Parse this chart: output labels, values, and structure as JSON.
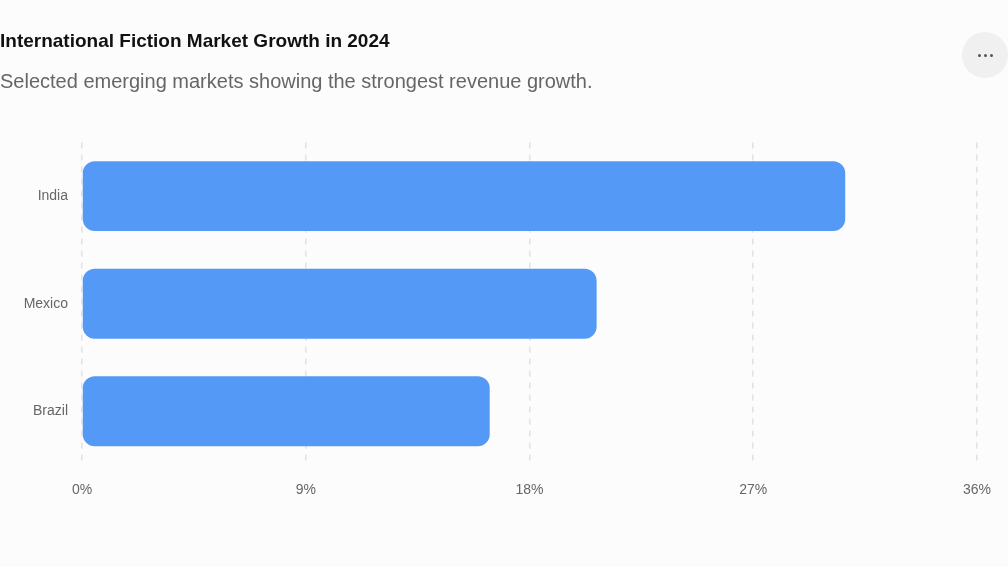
{
  "chart_data": {
    "type": "bar",
    "orientation": "horizontal",
    "title": "International Fiction Market Growth in 2024",
    "subtitle": "Selected emerging markets showing the strongest revenue growth.",
    "categories": [
      "India",
      "Mexico",
      "Brazil"
    ],
    "values": [
      30.7,
      20.7,
      16.4
    ],
    "color": "#5599f7",
    "xlim": [
      0,
      36
    ],
    "xticks": [
      {
        "value": 0,
        "label": "0%"
      },
      {
        "value": 9,
        "label": "9%"
      },
      {
        "value": 18,
        "label": "18%"
      },
      {
        "value": 27,
        "label": "27%"
      },
      {
        "value": 36,
        "label": "36%"
      }
    ],
    "grid": "x"
  }
}
